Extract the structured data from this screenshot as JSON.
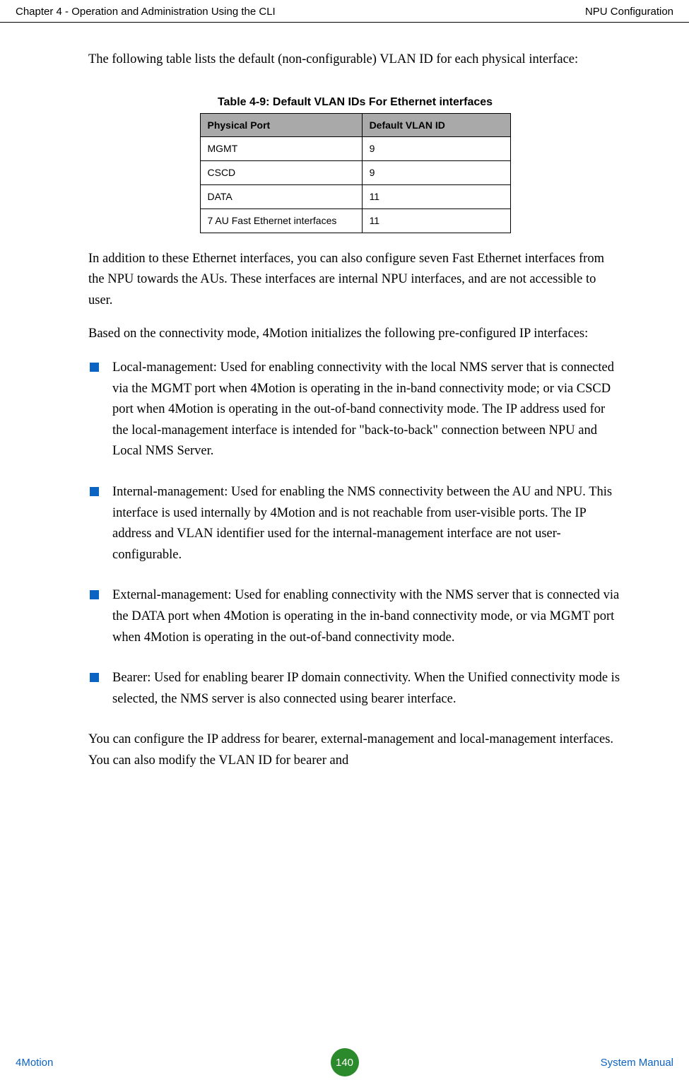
{
  "header": {
    "left": "Chapter 4 - Operation and Administration Using the CLI",
    "right": "NPU Configuration"
  },
  "intro": "The following table lists the default (non-configurable) VLAN ID for each physical interface:",
  "table": {
    "caption": "Table 4-9: Default VLAN IDs For Ethernet interfaces",
    "columns": [
      "Physical Port",
      "Default VLAN ID"
    ],
    "rows": [
      [
        "MGMT",
        "9"
      ],
      [
        "CSCD",
        "9"
      ],
      [
        "DATA",
        "11"
      ],
      [
        "7 AU Fast Ethernet interfaces",
        "11"
      ]
    ],
    "header_bg": "#a9a9a9",
    "border_color": "#000000",
    "font_size": 14
  },
  "para_after_table": "In addition to these Ethernet interfaces, you can also configure seven Fast Ethernet interfaces from the NPU towards the AUs. These interfaces are internal NPU interfaces, and are not accessible to user.",
  "para_modes": "Based on the connectivity mode, 4Motion initializes the following pre-configured IP interfaces:",
  "bullets": [
    "Local-management: Used for enabling connectivity with the local NMS server that is connected via the MGMT port when 4Motion is operating in the in-band connectivity mode; or via CSCD port when 4Motion is operating in the out-of-band connectivity mode. The IP address used for the local-management interface is intended for \"back-to-back\" connection between NPU and Local NMS Server.",
    "Internal-management: Used for enabling the NMS connectivity between the AU and NPU. This interface is used internally by 4Motion and is not reachable from user-visible ports. The IP address and VLAN identifier used for the internal-management interface are not user-configurable.",
    "External-management: Used for enabling connectivity with the NMS server that is connected via the DATA port when 4Motion is operating in the in-band connectivity mode, or via MGMT port when 4Motion is operating in the out-of-band connectivity mode.",
    "Bearer: Used for enabling bearer IP domain connectivity. When the Unified connectivity mode is selected, the NMS server is also connected using bearer interface."
  ],
  "para_config": "You can configure the IP address for bearer, external-management and local-management interfaces. You can also modify the VLAN ID for bearer and",
  "footer": {
    "left": "4Motion",
    "page": "140",
    "right": "System Manual",
    "link_color": "#0b63c4",
    "badge_bg": "#2b8a2b"
  },
  "style": {
    "bullet_color": "#0b63c4",
    "body_font": "Century Schoolbook",
    "body_font_size": 18.5
  }
}
